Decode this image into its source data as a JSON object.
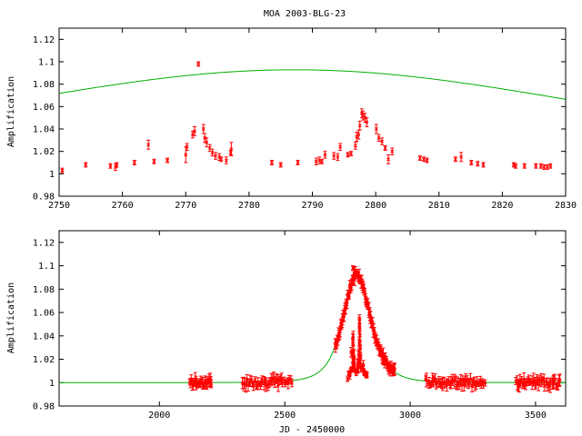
{
  "title": "MOA 2003-BLG-23",
  "colors": {
    "data": "#ff0000",
    "model": "#00b000",
    "axes": "#000000"
  },
  "chart_data": [
    {
      "type": "scatter",
      "panel": "top",
      "title": "MOA 2003-BLG-23",
      "xlabel": "",
      "ylabel": "Amplification",
      "xlim": [
        2750,
        2830
      ],
      "ylim": [
        0.98,
        1.13
      ],
      "xticks": [
        2750,
        2760,
        2770,
        2780,
        2790,
        2800,
        2810,
        2820,
        2830
      ],
      "yticks": [
        0.98,
        1,
        1.02,
        1.04,
        1.06,
        1.08,
        1.1,
        1.12
      ],
      "ytick_labels": [
        "0.98",
        "1",
        "1.02",
        "1.04",
        "1.06",
        "1.08",
        "1.1",
        "1.12"
      ],
      "model": {
        "t0": 2787.2,
        "u0": 1.72,
        "tE": 48
      },
      "points": [
        [
          2750.5,
          1.003,
          0.002
        ],
        [
          2754.2,
          1.008,
          0.002
        ],
        [
          2758.1,
          1.007,
          0.002
        ],
        [
          2758.9,
          1.006,
          0.003
        ],
        [
          2759.1,
          1.008,
          0.002
        ],
        [
          2761.9,
          1.01,
          0.002
        ],
        [
          2764.1,
          1.026,
          0.004
        ],
        [
          2765.0,
          1.011,
          0.002
        ],
        [
          2767.1,
          1.012,
          0.002
        ],
        [
          2770.0,
          1.017,
          0.007
        ],
        [
          2770.2,
          1.024,
          0.003
        ],
        [
          2771.1,
          1.035,
          0.003
        ],
        [
          2771.4,
          1.038,
          0.004
        ],
        [
          2772.0,
          1.098,
          0.002
        ],
        [
          2772.8,
          1.04,
          0.004
        ],
        [
          2773.0,
          1.032,
          0.004
        ],
        [
          2773.3,
          1.028,
          0.004
        ],
        [
          2773.8,
          1.023,
          0.003
        ],
        [
          2774.2,
          1.019,
          0.003
        ],
        [
          2774.7,
          1.016,
          0.003
        ],
        [
          2775.3,
          1.015,
          0.003
        ],
        [
          2775.6,
          1.013,
          0.002
        ],
        [
          2776.4,
          1.012,
          0.003
        ],
        [
          2777.2,
          1.022,
          0.006
        ],
        [
          2777.1,
          1.019,
          0.002
        ],
        [
          2783.6,
          1.01,
          0.002
        ],
        [
          2785.0,
          1.008,
          0.002
        ],
        [
          2787.7,
          1.01,
          0.002
        ],
        [
          2790.6,
          1.011,
          0.003
        ],
        [
          2791.1,
          1.012,
          0.003
        ],
        [
          2791.5,
          1.011,
          0.002
        ],
        [
          2792.0,
          1.017,
          0.003
        ],
        [
          2793.4,
          1.016,
          0.003
        ],
        [
          2794.0,
          1.015,
          0.003
        ],
        [
          2794.4,
          1.024,
          0.003
        ],
        [
          2795.6,
          1.017,
          0.002
        ],
        [
          2796.1,
          1.018,
          0.002
        ],
        [
          2796.8,
          1.025,
          0.003
        ],
        [
          2797.0,
          1.033,
          0.004
        ],
        [
          2797.3,
          1.035,
          0.004
        ],
        [
          2797.5,
          1.043,
          0.004
        ],
        [
          2797.8,
          1.054,
          0.004
        ],
        [
          2798.0,
          1.052,
          0.004
        ],
        [
          2798.3,
          1.05,
          0.004
        ],
        [
          2798.6,
          1.046,
          0.004
        ],
        [
          2800.1,
          1.04,
          0.004
        ],
        [
          2800.5,
          1.032,
          0.003
        ],
        [
          2801.0,
          1.029,
          0.003
        ],
        [
          2801.5,
          1.023,
          0.002
        ],
        [
          2802.0,
          1.013,
          0.004
        ],
        [
          2802.6,
          1.02,
          0.003
        ],
        [
          2807.0,
          1.014,
          0.002
        ],
        [
          2807.6,
          1.013,
          0.002
        ],
        [
          2808.1,
          1.012,
          0.002
        ],
        [
          2812.6,
          1.013,
          0.002
        ],
        [
          2813.5,
          1.015,
          0.004
        ],
        [
          2815.1,
          1.01,
          0.002
        ],
        [
          2816.1,
          1.009,
          0.002
        ],
        [
          2817.0,
          1.008,
          0.002
        ],
        [
          2821.8,
          1.008,
          0.002
        ],
        [
          2822.1,
          1.007,
          0.002
        ],
        [
          2823.5,
          1.007,
          0.002
        ],
        [
          2825.3,
          1.007,
          0.002
        ],
        [
          2826.1,
          1.007,
          0.002
        ],
        [
          2826.6,
          1.006,
          0.002
        ],
        [
          2827.1,
          1.006,
          0.002
        ],
        [
          2827.6,
          1.007,
          0.002
        ]
      ]
    },
    {
      "type": "scatter",
      "panel": "bottom",
      "title": "",
      "xlabel": "JD - 2450000",
      "ylabel": "Amplification",
      "xlim": [
        1600,
        3620
      ],
      "ylim": [
        0.98,
        1.13
      ],
      "xticks": [
        2000,
        2500,
        3000,
        3500
      ],
      "yticks": [
        0.98,
        1,
        1.02,
        1.04,
        1.06,
        1.08,
        1.1,
        1.12
      ],
      "ytick_labels": [
        "0.98",
        "1",
        "1.02",
        "1.04",
        "1.06",
        "1.08",
        "1.1",
        "1.12"
      ],
      "model": {
        "t0": 2787.2,
        "u0": 1.72,
        "tE": 48
      },
      "seasons": [
        {
          "from": 2120,
          "to": 2210,
          "count": 28
        },
        {
          "from": 2330,
          "to": 2530,
          "count": 45
        },
        {
          "from": 2700,
          "to": 2940,
          "count": 120
        },
        {
          "from": 3060,
          "to": 3300,
          "count": 55
        },
        {
          "from": 3420,
          "to": 3600,
          "count": 45
        }
      ],
      "outlier": [
        2772.0,
        1.098,
        0.002
      ]
    }
  ]
}
